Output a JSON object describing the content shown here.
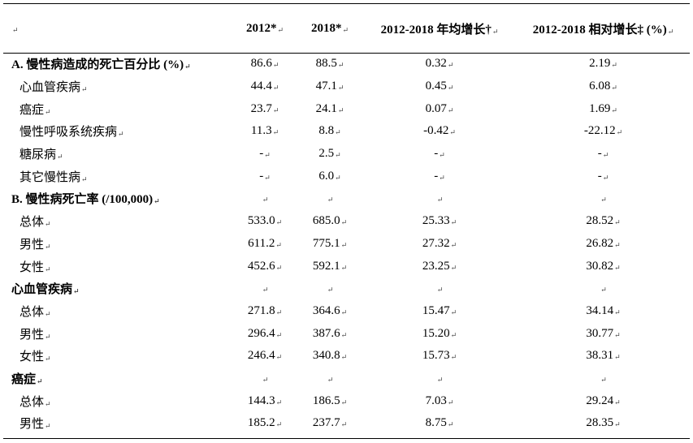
{
  "header": {
    "col0": "",
    "col1": "2012*",
    "col2": "2018*",
    "col3": "2012-2018 年均增长†",
    "col4": "2012-2018 相对增长‡ (%)"
  },
  "mark": "↵",
  "rows": [
    {
      "label": "A. 慢性病造成的死亡百分比 (%)",
      "v2012": "86.6",
      "v2018": "88.5",
      "annual": "0.32",
      "relative": "2.19"
    },
    {
      "label": "心血管疾病",
      "v2012": "44.4",
      "v2018": "47.1",
      "annual": "0.45",
      "relative": "6.08"
    },
    {
      "label": "癌症",
      "v2012": "23.7",
      "v2018": "24.1",
      "annual": "0.07",
      "relative": "1.69"
    },
    {
      "label": "慢性呼吸系统疾病",
      "v2012": "11.3",
      "v2018": "8.8",
      "annual": "-0.42",
      "relative": "-22.12"
    },
    {
      "label": "糖尿病",
      "v2012": "-",
      "v2018": "2.5",
      "annual": "-",
      "relative": "-"
    },
    {
      "label": "其它慢性病",
      "v2012": "-",
      "v2018": "6.0",
      "annual": "-",
      "relative": "-"
    },
    {
      "label": "B. 慢性病死亡率 (/100,000)",
      "v2012": "",
      "v2018": "",
      "annual": "",
      "relative": ""
    },
    {
      "label": "总体",
      "v2012": "533.0",
      "v2018": "685.0",
      "annual": "25.33",
      "relative": "28.52"
    },
    {
      "label": "男性",
      "v2012": "611.2",
      "v2018": "775.1",
      "annual": "27.32",
      "relative": "26.82"
    },
    {
      "label": "女性",
      "v2012": "452.6",
      "v2018": "592.1",
      "annual": "23.25",
      "relative": "30.82"
    },
    {
      "label": "心血管疾病",
      "v2012": "",
      "v2018": "",
      "annual": "",
      "relative": ""
    },
    {
      "label": "总体",
      "v2012": "271.8",
      "v2018": "364.6",
      "annual": "15.47",
      "relative": "34.14"
    },
    {
      "label": "男性",
      "v2012": "296.4",
      "v2018": "387.6",
      "annual": "15.20",
      "relative": "30.77"
    },
    {
      "label": "女性",
      "v2012": "246.4",
      "v2018": "340.8",
      "annual": "15.73",
      "relative": "38.31"
    },
    {
      "label": "癌症",
      "v2012": "",
      "v2018": "",
      "annual": "",
      "relative": ""
    },
    {
      "label": "总体",
      "v2012": "144.3",
      "v2018": "186.5",
      "annual": "7.03",
      "relative": "29.24"
    },
    {
      "label": "男性",
      "v2012": "185.2",
      "v2018": "237.7",
      "annual": "8.75",
      "relative": "28.35"
    }
  ]
}
